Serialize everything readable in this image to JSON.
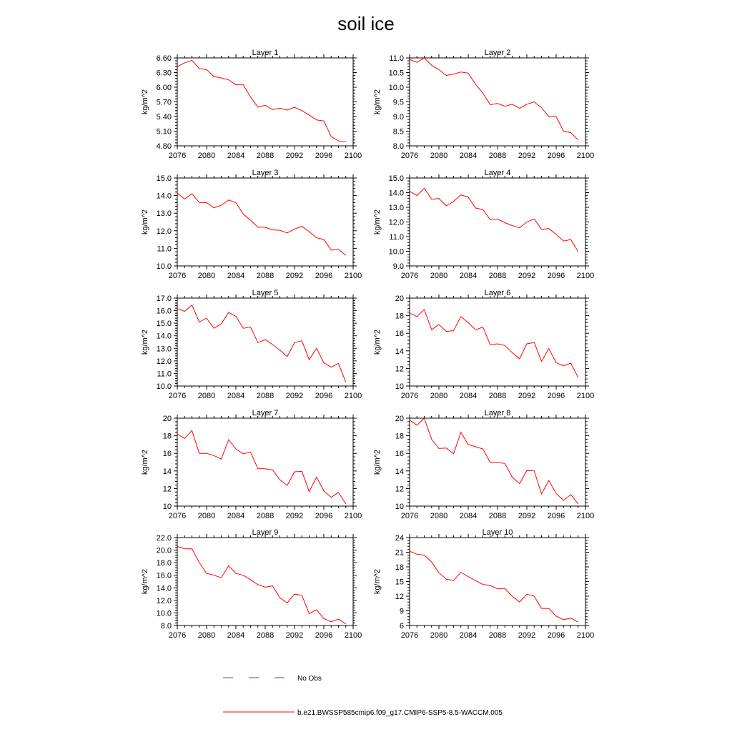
{
  "title": "soil ice",
  "legend": {
    "obs_label": "No Obs",
    "model_label": "b.e21.BWSSP585cmip6.f09_g17.CMIP6-SSP5-8.5-WACCM.005",
    "model_color": "#ff0000",
    "obs_color": "#4a4aa8"
  },
  "chart_data": [
    {
      "type": "line",
      "title": "Layer 1",
      "ylabel": "kg/m^2",
      "xlim": [
        2076,
        2100
      ],
      "xticks": [
        "2076",
        "2080",
        "2084",
        "2088",
        "2092",
        "2096",
        "2100"
      ],
      "ylim": [
        4.8,
        6.6
      ],
      "yticks": [
        "4.80",
        "5.10",
        "5.40",
        "5.70",
        "6.00",
        "6.30",
        "6.60"
      ],
      "x": [
        2076,
        2077,
        2078,
        2079,
        2080,
        2081,
        2082,
        2083,
        2084,
        2085,
        2086,
        2087,
        2088,
        2089,
        2090,
        2091,
        2092,
        2093,
        2094,
        2095,
        2096,
        2097,
        2098,
        2099
      ],
      "series": [
        {
          "color": "#ff0000",
          "values": [
            6.42,
            6.5,
            6.55,
            6.38,
            6.36,
            6.22,
            6.19,
            6.15,
            6.05,
            6.05,
            5.8,
            5.59,
            5.63,
            5.54,
            5.57,
            5.53,
            5.59,
            5.52,
            5.43,
            5.33,
            5.31,
            4.99,
            4.9,
            4.88
          ]
        }
      ]
    },
    {
      "type": "line",
      "title": "Layer 2",
      "ylabel": "kg/m^2",
      "xlim": [
        2076,
        2100
      ],
      "xticks": [
        "2076",
        "2080",
        "2084",
        "2088",
        "2092",
        "2096",
        "2100"
      ],
      "ylim": [
        8.0,
        11.0
      ],
      "yticks": [
        "8.0",
        "8.5",
        "9.0",
        "9.5",
        "10.0",
        "10.5",
        "11.0"
      ],
      "x": [
        2076,
        2077,
        2078,
        2079,
        2080,
        2081,
        2082,
        2083,
        2084,
        2085,
        2086,
        2087,
        2088,
        2089,
        2090,
        2091,
        2092,
        2093,
        2094,
        2095,
        2096,
        2097,
        2098,
        2099
      ],
      "series": [
        {
          "color": "#ff0000",
          "values": [
            10.95,
            10.85,
            11.0,
            10.75,
            10.6,
            10.4,
            10.45,
            10.52,
            10.48,
            10.1,
            9.8,
            9.4,
            9.45,
            9.35,
            9.42,
            9.28,
            9.42,
            9.5,
            9.3,
            9.0,
            9.0,
            8.5,
            8.45,
            8.2
          ]
        }
      ]
    },
    {
      "type": "line",
      "title": "Layer 3",
      "ylabel": "kg/m^2",
      "xlim": [
        2076,
        2100
      ],
      "xticks": [
        "2076",
        "2080",
        "2084",
        "2088",
        "2092",
        "2096",
        "2100"
      ],
      "ylim": [
        10.0,
        15.0
      ],
      "yticks": [
        "10.0",
        "11.0",
        "12.0",
        "13.0",
        "14.0",
        "15.0"
      ],
      "x": [
        2076,
        2077,
        2078,
        2079,
        2080,
        2081,
        2082,
        2083,
        2084,
        2085,
        2086,
        2087,
        2088,
        2089,
        2090,
        2091,
        2092,
        2093,
        2094,
        2095,
        2096,
        2097,
        2098,
        2099
      ],
      "series": [
        {
          "color": "#ff0000",
          "values": [
            14.15,
            13.8,
            14.1,
            13.6,
            13.6,
            13.3,
            13.45,
            13.75,
            13.6,
            12.95,
            12.6,
            12.2,
            12.2,
            12.05,
            12.03,
            11.88,
            12.1,
            12.25,
            11.95,
            11.6,
            11.5,
            10.9,
            10.95,
            10.6
          ]
        }
      ]
    },
    {
      "type": "line",
      "title": "Layer 4",
      "ylabel": "kg/m^2",
      "xlim": [
        2076,
        2100
      ],
      "xticks": [
        "2076",
        "2080",
        "2084",
        "2088",
        "2092",
        "2096",
        "2100"
      ],
      "ylim": [
        9.0,
        15.0
      ],
      "yticks": [
        "9.0",
        "10.0",
        "11.0",
        "12.0",
        "13.0",
        "14.0",
        "15.0"
      ],
      "x": [
        2076,
        2077,
        2078,
        2079,
        2080,
        2081,
        2082,
        2083,
        2084,
        2085,
        2086,
        2087,
        2088,
        2089,
        2090,
        2091,
        2092,
        2093,
        2094,
        2095,
        2096,
        2097,
        2098,
        2099
      ],
      "series": [
        {
          "color": "#ff0000",
          "values": [
            14.1,
            13.8,
            14.3,
            13.55,
            13.6,
            13.1,
            13.4,
            13.85,
            13.7,
            12.95,
            12.85,
            12.15,
            12.2,
            11.95,
            11.75,
            11.6,
            12.0,
            12.2,
            11.5,
            11.55,
            11.15,
            10.7,
            10.8,
            9.98
          ]
        }
      ]
    },
    {
      "type": "line",
      "title": "Layer 5",
      "ylabel": "kg/m^2",
      "xlim": [
        2076,
        2100
      ],
      "xticks": [
        "2076",
        "2080",
        "2084",
        "2088",
        "2092",
        "2096",
        "2100"
      ],
      "ylim": [
        10.0,
        17.0
      ],
      "yticks": [
        "10.0",
        "11.0",
        "12.0",
        "13.0",
        "14.0",
        "15.0",
        "16.0",
        "17.0"
      ],
      "x": [
        2076,
        2077,
        2078,
        2079,
        2080,
        2081,
        2082,
        2083,
        2084,
        2085,
        2086,
        2087,
        2088,
        2089,
        2090,
        2091,
        2092,
        2093,
        2094,
        2095,
        2096,
        2097,
        2098,
        2099
      ],
      "series": [
        {
          "color": "#ff0000",
          "values": [
            16.15,
            15.95,
            16.45,
            15.1,
            15.4,
            14.6,
            14.95,
            15.85,
            15.55,
            14.6,
            14.7,
            13.45,
            13.7,
            13.3,
            12.85,
            12.35,
            13.45,
            13.6,
            12.1,
            13.0,
            11.85,
            11.5,
            11.8,
            10.3
          ]
        }
      ]
    },
    {
      "type": "line",
      "title": "Layer 6",
      "ylabel": "kg/m^2",
      "xlim": [
        2076,
        2100
      ],
      "xticks": [
        "2076",
        "2080",
        "2084",
        "2088",
        "2092",
        "2096",
        "2100"
      ],
      "ylim": [
        10,
        20
      ],
      "yticks": [
        "10",
        "12",
        "14",
        "16",
        "18",
        "20"
      ],
      "x": [
        2076,
        2077,
        2078,
        2079,
        2080,
        2081,
        2082,
        2083,
        2084,
        2085,
        2086,
        2087,
        2088,
        2089,
        2090,
        2091,
        2092,
        2093,
        2094,
        2095,
        2096,
        2097,
        2098,
        2099
      ],
      "series": [
        {
          "color": "#ff0000",
          "values": [
            18.3,
            17.9,
            18.7,
            16.4,
            17.0,
            16.2,
            16.3,
            17.9,
            17.2,
            16.4,
            16.7,
            14.7,
            14.8,
            14.6,
            13.8,
            13.1,
            14.8,
            14.95,
            12.8,
            14.25,
            12.65,
            12.3,
            12.6,
            10.95
          ]
        }
      ]
    },
    {
      "type": "line",
      "title": "Layer 7",
      "ylabel": "kg/m^2",
      "xlim": [
        2076,
        2100
      ],
      "xticks": [
        "2076",
        "2080",
        "2084",
        "2088",
        "2092",
        "2096",
        "2100"
      ],
      "ylim": [
        10,
        20
      ],
      "yticks": [
        "10",
        "12",
        "14",
        "16",
        "18",
        "20"
      ],
      "x": [
        2076,
        2077,
        2078,
        2079,
        2080,
        2081,
        2082,
        2083,
        2084,
        2085,
        2086,
        2087,
        2088,
        2089,
        2090,
        2091,
        2092,
        2093,
        2094,
        2095,
        2096,
        2097,
        2098,
        2099
      ],
      "series": [
        {
          "color": "#ff0000",
          "values": [
            18.2,
            17.7,
            18.6,
            16.0,
            16.0,
            15.75,
            15.35,
            17.55,
            16.5,
            15.95,
            16.15,
            14.25,
            14.25,
            14.1,
            13.0,
            12.35,
            13.9,
            13.95,
            11.65,
            13.3,
            11.75,
            11.0,
            11.55,
            10.25
          ]
        }
      ]
    },
    {
      "type": "line",
      "title": "Layer 8",
      "ylabel": "kg/m^2",
      "xlim": [
        2076,
        2100
      ],
      "xticks": [
        "2076",
        "2080",
        "2084",
        "2088",
        "2092",
        "2096",
        "2100"
      ],
      "ylim": [
        10,
        20
      ],
      "yticks": [
        "10",
        "12",
        "14",
        "16",
        "18",
        "20"
      ],
      "x": [
        2076,
        2077,
        2078,
        2079,
        2080,
        2081,
        2082,
        2083,
        2084,
        2085,
        2086,
        2087,
        2088,
        2089,
        2090,
        2091,
        2092,
        2093,
        2094,
        2095,
        2096,
        2097,
        2098,
        2099
      ],
      "series": [
        {
          "color": "#ff0000",
          "values": [
            19.8,
            19.2,
            20.0,
            17.6,
            16.55,
            16.6,
            15.95,
            18.4,
            17.0,
            16.75,
            16.5,
            14.95,
            14.95,
            14.85,
            13.3,
            12.55,
            14.05,
            14.0,
            11.4,
            12.9,
            11.45,
            10.65,
            11.3,
            10.25
          ]
        }
      ]
    },
    {
      "type": "line",
      "title": "Layer 9",
      "ylabel": "kg/m^2",
      "xlim": [
        2076,
        2100
      ],
      "xticks": [
        "2076",
        "2080",
        "2084",
        "2088",
        "2092",
        "2096",
        "2100"
      ],
      "ylim": [
        8.0,
        22.0
      ],
      "yticks": [
        "8.0",
        "10.0",
        "12.0",
        "14.0",
        "16.0",
        "18.0",
        "20.0",
        "22.0"
      ],
      "x": [
        2076,
        2077,
        2078,
        2079,
        2080,
        2081,
        2082,
        2083,
        2084,
        2085,
        2086,
        2087,
        2088,
        2089,
        2090,
        2091,
        2092,
        2093,
        2094,
        2095,
        2096,
        2097,
        2098,
        2099
      ],
      "series": [
        {
          "color": "#ff0000",
          "values": [
            20.6,
            20.2,
            20.2,
            18.0,
            16.3,
            16.0,
            15.6,
            17.5,
            16.3,
            16.0,
            15.3,
            14.5,
            14.1,
            14.3,
            12.4,
            11.6,
            13.0,
            12.8,
            9.9,
            10.5,
            9.1,
            8.6,
            9.0,
            8.25
          ]
        }
      ]
    },
    {
      "type": "line",
      "title": "Layer 10",
      "ylabel": "kg/m^2",
      "xlim": [
        2076,
        2100
      ],
      "xticks": [
        "2076",
        "2080",
        "2084",
        "2088",
        "2092",
        "2096",
        "2100"
      ],
      "ylim": [
        6,
        24
      ],
      "yticks": [
        "6",
        "9",
        "12",
        "15",
        "18",
        "21",
        "24"
      ],
      "x": [
        2076,
        2077,
        2078,
        2079,
        2080,
        2081,
        2082,
        2083,
        2084,
        2085,
        2086,
        2087,
        2088,
        2089,
        2090,
        2091,
        2092,
        2093,
        2094,
        2095,
        2096,
        2097,
        2098,
        2099
      ],
      "series": [
        {
          "color": "#ff0000",
          "values": [
            21.2,
            20.6,
            20.4,
            19.0,
            16.8,
            15.5,
            15.2,
            16.9,
            16.0,
            15.2,
            14.4,
            14.2,
            13.5,
            13.6,
            12.0,
            10.8,
            12.4,
            12.0,
            9.5,
            9.5,
            7.9,
            7.2,
            7.5,
            6.7
          ]
        }
      ]
    }
  ]
}
